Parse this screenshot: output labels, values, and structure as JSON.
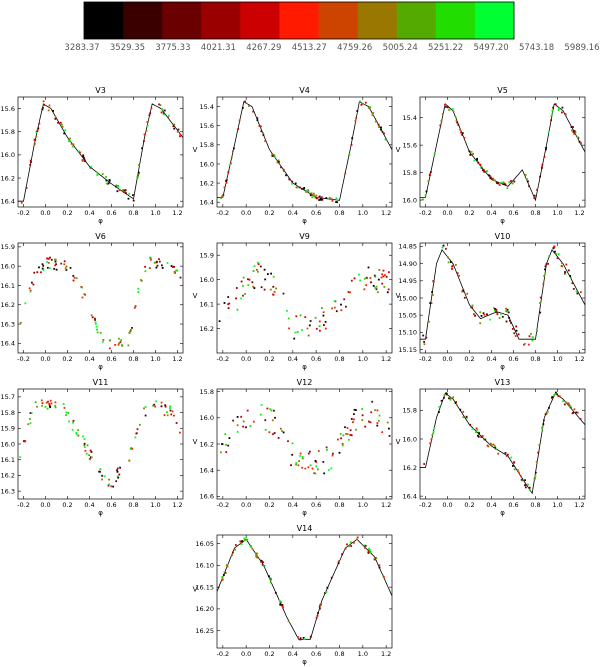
{
  "colorbar": {
    "colors": [
      "#000000",
      "#3a0000",
      "#6a0000",
      "#9a0000",
      "#cc0000",
      "#ff1a00",
      "#cc4400",
      "#997700",
      "#55aa00",
      "#22dd00",
      "#00ff33"
    ],
    "labels": [
      "3283.37",
      "3529.35",
      "3775.33",
      "4021.31",
      "4267.29",
      "4513.27",
      "4759.26",
      "5005.24",
      "5251.22",
      "5497.20",
      "5743.18",
      "5989.16"
    ]
  },
  "chart_data": [
    {
      "type": "scatter",
      "title": "V3",
      "xlabel": "φ",
      "ylabel": "V",
      "xlim": [
        -0.25,
        1.25
      ],
      "ylim": [
        16.45,
        15.5
      ],
      "xticks": [
        "-0.2",
        "0.0",
        "0.2",
        "0.4",
        "0.6",
        "0.8",
        "1.0",
        "1.2"
      ],
      "yticks": [
        "15.6",
        "15.8",
        "16.0",
        "16.2",
        "16.4"
      ],
      "curve": [
        [
          -0.2,
          16.4
        ],
        [
          -0.1,
          15.9
        ],
        [
          -0.02,
          15.56
        ],
        [
          0.05,
          15.6
        ],
        [
          0.2,
          15.85
        ],
        [
          0.4,
          16.1
        ],
        [
          0.6,
          16.25
        ],
        [
          0.8,
          16.38
        ],
        [
          0.9,
          15.85
        ],
        [
          0.97,
          15.56
        ],
        [
          1.05,
          15.6
        ],
        [
          1.25,
          15.85
        ]
      ],
      "points_desc": "rising branch near φ 0.9–1.0, falling branch 0.0–0.8 with scattered magnitudes around the model curve"
    },
    {
      "type": "scatter",
      "title": "V4",
      "xlabel": "φ",
      "ylabel": "V",
      "xlim": [
        -0.25,
        1.25
      ],
      "ylim": [
        16.45,
        15.3
      ],
      "xticks": [
        "-0.2",
        "0.0",
        "0.2",
        "0.4",
        "0.6",
        "0.8",
        "1.0",
        "1.2"
      ],
      "yticks": [
        "15.4",
        "15.6",
        "15.8",
        "16.0",
        "16.2",
        "16.4"
      ],
      "curve": [
        [
          -0.2,
          16.35
        ],
        [
          -0.1,
          15.8
        ],
        [
          -0.02,
          15.35
        ],
        [
          0.05,
          15.4
        ],
        [
          0.2,
          15.85
        ],
        [
          0.4,
          16.2
        ],
        [
          0.6,
          16.35
        ],
        [
          0.8,
          16.38
        ],
        [
          0.9,
          15.8
        ],
        [
          0.97,
          15.35
        ],
        [
          1.05,
          15.4
        ],
        [
          1.25,
          15.85
        ]
      ]
    },
    {
      "type": "scatter",
      "title": "V5",
      "xlabel": "φ",
      "ylabel": "V",
      "xlim": [
        -0.25,
        1.25
      ],
      "ylim": [
        16.05,
        15.25
      ],
      "xticks": [
        "-0.2",
        "0.0",
        "0.2",
        "0.4",
        "0.6",
        "0.8",
        "1.0",
        "1.2"
      ],
      "yticks": [
        "15.4",
        "15.6",
        "15.8",
        "16.0"
      ],
      "curve": [
        [
          -0.2,
          15.98
        ],
        [
          -0.1,
          15.6
        ],
        [
          -0.02,
          15.3
        ],
        [
          0.05,
          15.35
        ],
        [
          0.2,
          15.65
        ],
        [
          0.4,
          15.85
        ],
        [
          0.55,
          15.9
        ],
        [
          0.68,
          15.78
        ],
        [
          0.8,
          16.0
        ],
        [
          0.9,
          15.6
        ],
        [
          0.97,
          15.3
        ],
        [
          1.05,
          15.35
        ],
        [
          1.25,
          15.65
        ]
      ]
    },
    {
      "type": "scatter",
      "title": "V6",
      "xlabel": "φ",
      "ylabel": "V",
      "xlim": [
        -0.25,
        1.25
      ],
      "ylim": [
        16.45,
        15.88
      ],
      "xticks": [
        "-0.2",
        "0.0",
        "0.2",
        "0.4",
        "0.6",
        "0.8",
        "1.0",
        "1.2"
      ],
      "yticks": [
        "15.9",
        "16.0",
        "16.1",
        "16.2",
        "16.3",
        "16.4"
      ]
    },
    {
      "type": "scatter",
      "title": "V9",
      "xlabel": "φ",
      "ylabel": "V",
      "xlim": [
        -0.25,
        1.25
      ],
      "ylim": [
        16.3,
        15.85
      ],
      "xticks": [
        "-0.2",
        "0.0",
        "0.2",
        "0.4",
        "0.6",
        "0.8",
        "1.0",
        "1.2"
      ],
      "yticks": [
        "15.9",
        "16.0",
        "16.1",
        "16.2"
      ]
    },
    {
      "type": "scatter",
      "title": "V10",
      "xlabel": "φ",
      "ylabel": "V",
      "xlim": [
        -0.25,
        1.25
      ],
      "ylim": [
        15.16,
        14.84
      ],
      "xticks": [
        "-0.2",
        "0.0",
        "0.2",
        "0.4",
        "0.6",
        "0.8",
        "1.0",
        "1.2"
      ],
      "yticks": [
        "14.85",
        "14.90",
        "14.95",
        "15.00",
        "15.05",
        "15.10",
        "15.15"
      ],
      "curve": [
        [
          -0.2,
          15.12
        ],
        [
          -0.1,
          14.9
        ],
        [
          -0.05,
          14.86
        ],
        [
          0.05,
          14.9
        ],
        [
          0.2,
          15.02
        ],
        [
          0.3,
          15.06
        ],
        [
          0.45,
          15.04
        ],
        [
          0.55,
          15.05
        ],
        [
          0.65,
          15.12
        ],
        [
          0.8,
          15.12
        ],
        [
          0.9,
          14.9
        ],
        [
          0.95,
          14.86
        ],
        [
          1.05,
          14.9
        ],
        [
          1.25,
          15.02
        ]
      ]
    },
    {
      "type": "scatter",
      "title": "V11",
      "xlabel": "φ",
      "ylabel": "V",
      "xlim": [
        -0.25,
        1.25
      ],
      "ylim": [
        16.35,
        15.65
      ],
      "xticks": [
        "-0.2",
        "0.0",
        "0.2",
        "0.4",
        "0.6",
        "0.8",
        "1.0",
        "1.2"
      ],
      "yticks": [
        "15.7",
        "15.8",
        "15.9",
        "16.0",
        "16.1",
        "16.2",
        "16.3"
      ]
    },
    {
      "type": "scatter",
      "title": "V12",
      "xlabel": "φ",
      "ylabel": "V",
      "xlim": [
        -0.25,
        1.25
      ],
      "ylim": [
        16.62,
        15.78
      ],
      "xticks": [
        "-0.2",
        "0.0",
        "0.2",
        "0.4",
        "0.6",
        "0.8",
        "1.0",
        "1.2"
      ],
      "yticks": [
        "15.8",
        "16.0",
        "16.2",
        "16.4",
        "16.6"
      ]
    },
    {
      "type": "scatter",
      "title": "V13",
      "xlabel": "φ",
      "ylabel": "V",
      "xlim": [
        -0.25,
        1.25
      ],
      "ylim": [
        16.42,
        15.65
      ],
      "xticks": [
        "-0.2",
        "0.0",
        "0.2",
        "0.4",
        "0.6",
        "0.8",
        "1.0",
        "1.2"
      ],
      "yticks": [
        "15.8",
        "16.0",
        "16.2",
        "16.4"
      ],
      "curve": [
        [
          -0.2,
          16.2
        ],
        [
          -0.1,
          15.85
        ],
        [
          -0.02,
          15.68
        ],
        [
          0.05,
          15.72
        ],
        [
          0.2,
          15.9
        ],
        [
          0.4,
          16.05
        ],
        [
          0.55,
          16.12
        ],
        [
          0.7,
          16.3
        ],
        [
          0.77,
          16.38
        ],
        [
          0.88,
          15.85
        ],
        [
          0.98,
          15.68
        ],
        [
          1.05,
          15.72
        ],
        [
          1.25,
          15.9
        ]
      ]
    },
    {
      "type": "scatter",
      "title": "V14",
      "xlabel": "φ",
      "ylabel": "V",
      "xlim": [
        -0.25,
        1.25
      ],
      "ylim": [
        16.29,
        16.03
      ],
      "xticks": [
        "-0.2",
        "0.0",
        "0.2",
        "0.4",
        "0.6",
        "0.8",
        "1.0",
        "1.2"
      ],
      "yticks": [
        "16.05",
        "16.10",
        "16.15",
        "16.20",
        "16.25"
      ],
      "curve": [
        [
          -0.25,
          16.16
        ],
        [
          -0.1,
          16.06
        ],
        [
          0.0,
          16.04
        ],
        [
          0.15,
          16.1
        ],
        [
          0.35,
          16.22
        ],
        [
          0.45,
          16.27
        ],
        [
          0.55,
          16.27
        ],
        [
          0.65,
          16.18
        ],
        [
          0.85,
          16.06
        ],
        [
          0.95,
          16.04
        ],
        [
          1.1,
          16.08
        ],
        [
          1.25,
          16.17
        ]
      ]
    }
  ]
}
